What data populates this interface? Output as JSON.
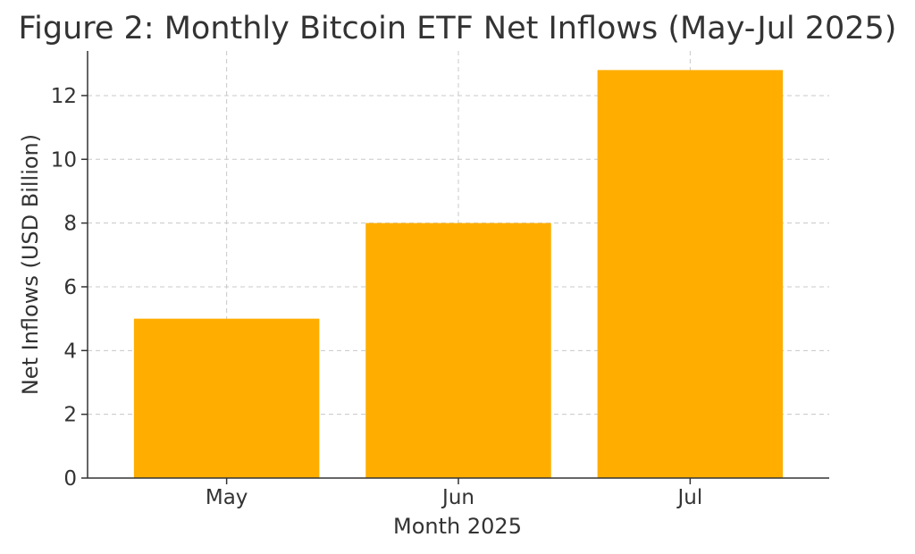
{
  "chart_data": {
    "type": "bar",
    "title": "Figure 2: Monthly Bitcoin ETF Net Inflows (May-Jul 2025)",
    "xlabel": "Month 2025",
    "ylabel": "Net Inflows (USD Billion)",
    "categories": [
      "May",
      "Jun",
      "Jul"
    ],
    "values": [
      5.0,
      8.0,
      12.8
    ],
    "ylim": [
      0,
      13.4
    ],
    "yticks": [
      0,
      2,
      4,
      6,
      8,
      10,
      12
    ],
    "grid": true,
    "legend": "none",
    "bar_color": "#FFAE00"
  }
}
